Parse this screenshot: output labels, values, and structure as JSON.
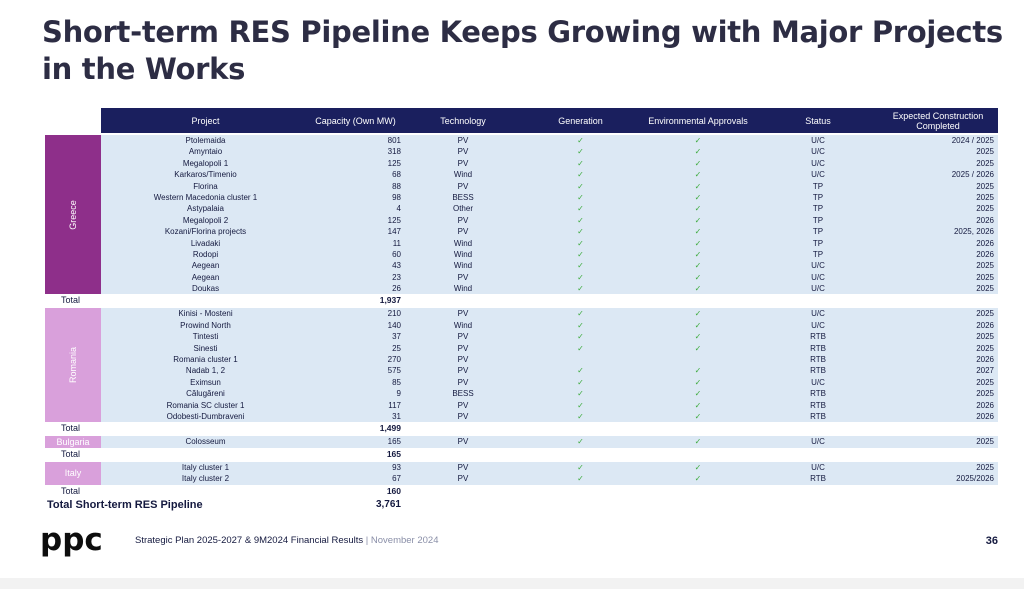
{
  "title": "Short-term RES Pipeline Keeps Growing with Major Projects in the Works",
  "headers": {
    "project": "Project",
    "capacity": "Capacity (Own MW)",
    "technology": "Technology",
    "generation": "Generation",
    "environmental": "Environmental Approvals",
    "status": "Status",
    "expected": "Expected Construction Completed"
  },
  "check": "✓",
  "groups": [
    {
      "name": "Greece",
      "rows": [
        {
          "project": "Ptolemaida",
          "capacity": "801",
          "technology": "PV",
          "generation": true,
          "environmental": true,
          "status": "U/C",
          "expected": "2024 / 2025"
        },
        {
          "project": "Amyntaio",
          "capacity": "318",
          "technology": "PV",
          "generation": true,
          "environmental": true,
          "status": "U/C",
          "expected": "2025"
        },
        {
          "project": "Megalopoli 1",
          "capacity": "125",
          "technology": "PV",
          "generation": true,
          "environmental": true,
          "status": "U/C",
          "expected": "2025"
        },
        {
          "project": "Karkaros/Timenio",
          "capacity": "68",
          "technology": "Wind",
          "generation": true,
          "environmental": true,
          "status": "U/C",
          "expected": "2025 / 2026"
        },
        {
          "project": "Florina",
          "capacity": "88",
          "technology": "PV",
          "generation": true,
          "environmental": true,
          "status": "TP",
          "expected": "2025"
        },
        {
          "project": "Western Macedonia cluster 1",
          "capacity": "98",
          "technology": "BESS",
          "generation": true,
          "environmental": true,
          "status": "TP",
          "expected": "2025"
        },
        {
          "project": "Astypalaia",
          "capacity": "4",
          "technology": "Other",
          "generation": true,
          "environmental": true,
          "status": "TP",
          "expected": "2025"
        },
        {
          "project": "Megalopoli 2",
          "capacity": "125",
          "technology": "PV",
          "generation": true,
          "environmental": true,
          "status": "TP",
          "expected": "2026"
        },
        {
          "project": "Kozani/Florina projects",
          "capacity": "147",
          "technology": "PV",
          "generation": true,
          "environmental": true,
          "status": "TP",
          "expected": "2025, 2026"
        },
        {
          "project": "Livadaki",
          "capacity": "11",
          "technology": "Wind",
          "generation": true,
          "environmental": true,
          "status": "TP",
          "expected": "2026"
        },
        {
          "project": "Rodopi",
          "capacity": "60",
          "technology": "Wind",
          "generation": true,
          "environmental": true,
          "status": "TP",
          "expected": "2026"
        },
        {
          "project": "Aegean",
          "capacity": "43",
          "technology": "Wind",
          "generation": true,
          "environmental": true,
          "status": "U/C",
          "expected": "2025"
        },
        {
          "project": "Aegean",
          "capacity": "23",
          "technology": "PV",
          "generation": true,
          "environmental": true,
          "status": "U/C",
          "expected": "2025"
        },
        {
          "project": "Doukas",
          "capacity": "26",
          "technology": "Wind",
          "generation": true,
          "environmental": true,
          "status": "U/C",
          "expected": "2025"
        }
      ],
      "total_label": "Total",
      "total": "1,937"
    },
    {
      "name": "Romania",
      "rows": [
        {
          "project": "Kinisi - Mosteni",
          "capacity": "210",
          "technology": "PV",
          "generation": true,
          "environmental": true,
          "status": "U/C",
          "expected": "2025"
        },
        {
          "project": "Prowind North",
          "capacity": "140",
          "technology": "Wind",
          "generation": true,
          "environmental": true,
          "status": "U/C",
          "expected": "2026"
        },
        {
          "project": "Tintesti",
          "capacity": "37",
          "technology": "PV",
          "generation": true,
          "environmental": true,
          "status": "RTB",
          "expected": "2025"
        },
        {
          "project": "Sinesti",
          "capacity": "25",
          "technology": "PV",
          "generation": true,
          "environmental": true,
          "status": "RTB",
          "expected": "2025"
        },
        {
          "project": "Romania cluster 1",
          "capacity": "270",
          "technology": "PV",
          "generation": false,
          "environmental": false,
          "status": "RTB",
          "expected": "2026"
        },
        {
          "project": "Nadab 1, 2",
          "capacity": "575",
          "technology": "PV",
          "generation": true,
          "environmental": true,
          "status": "RTB",
          "expected": "2027"
        },
        {
          "project": "Eximsun",
          "capacity": "85",
          "technology": "PV",
          "generation": true,
          "environmental": true,
          "status": "U/C",
          "expected": "2025"
        },
        {
          "project": "Călugăreni",
          "capacity": "9",
          "technology": "BESS",
          "generation": true,
          "environmental": true,
          "status": "RTB",
          "expected": "2025"
        },
        {
          "project": "Romania SC cluster 1",
          "capacity": "117",
          "technology": "PV",
          "generation": true,
          "environmental": true,
          "status": "RTB",
          "expected": "2026"
        },
        {
          "project": "Odobesti-Dumbraveni",
          "capacity": "31",
          "technology": "PV",
          "generation": true,
          "environmental": true,
          "status": "RTB",
          "expected": "2026"
        }
      ],
      "total_label": "Total",
      "total": "1,499"
    },
    {
      "name": "Bulgaria",
      "rows": [
        {
          "project": "Colosseum",
          "capacity": "165",
          "technology": "PV",
          "generation": true,
          "environmental": true,
          "status": "U/C",
          "expected": "2025"
        }
      ],
      "total_label": "Total",
      "total": "165"
    },
    {
      "name": "Italy",
      "rows": [
        {
          "project": "Italy cluster 1",
          "capacity": "93",
          "technology": "PV",
          "generation": true,
          "environmental": true,
          "status": "U/C",
          "expected": "2025"
        },
        {
          "project": "Italy cluster 2",
          "capacity": "67",
          "technology": "PV",
          "generation": true,
          "environmental": true,
          "status": "RTB",
          "expected": "2025/2026"
        }
      ],
      "total_label": "Total",
      "total": "160"
    }
  ],
  "grand_total": {
    "label": "Total Short-term RES Pipeline",
    "value": "3,761"
  },
  "footer": {
    "logo_text": "ppc",
    "text": "Strategic Plan 2025-2027 & 9M2024 Financial Results",
    "separator": " | ",
    "month": "November 2024",
    "page": "36"
  },
  "colors": {
    "header_bg": "#1a1f5e",
    "row_band": "#dce8f4",
    "greece": "#8e2f8a",
    "other_countries": "#d9a0db",
    "check": "#3dab3d"
  }
}
